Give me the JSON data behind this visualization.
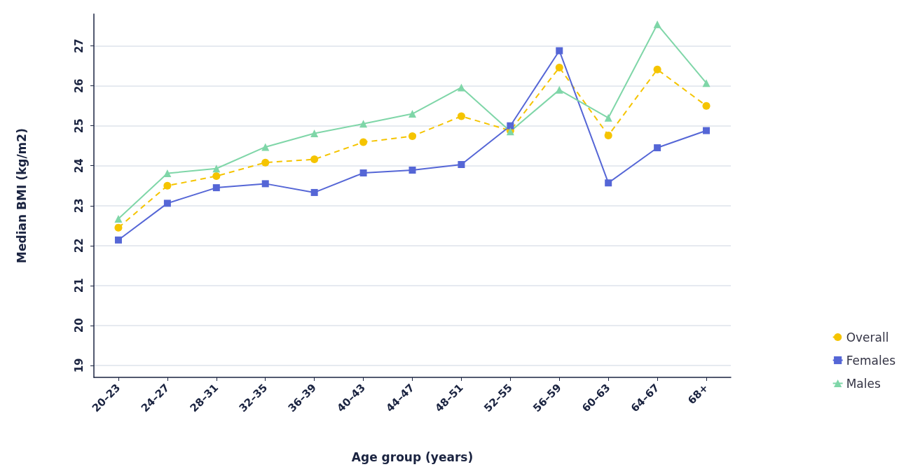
{
  "chart_data": {
    "type": "line",
    "xlabel": "Age group (years)",
    "ylabel": "Median BMI (kg/m2)",
    "categories": [
      "20–23",
      "24–27",
      "28–31",
      "32–35",
      "36–39",
      "40–43",
      "44–47",
      "48–51",
      "52–55",
      "56–59",
      "60–63",
      "64–67",
      "68+"
    ],
    "series": [
      {
        "name": "Overall",
        "color": "#f5c400",
        "marker": "circle",
        "line_style": "dashed",
        "values": [
          22.45,
          23.5,
          23.74,
          24.08,
          24.16,
          24.59,
          24.74,
          25.24,
          24.88,
          26.46,
          24.76,
          26.41,
          25.5
        ]
      },
      {
        "name": "Females",
        "color": "#5566d6",
        "marker": "square",
        "line_style": "solid",
        "values": [
          22.14,
          23.06,
          23.45,
          23.55,
          23.33,
          23.82,
          23.89,
          24.03,
          25.0,
          26.88,
          23.57,
          24.45,
          24.88
        ]
      },
      {
        "name": "Males",
        "color": "#7fd6a8",
        "marker": "triangle",
        "line_style": "solid",
        "values": [
          22.67,
          23.81,
          23.93,
          24.47,
          24.81,
          25.05,
          25.3,
          25.96,
          24.86,
          25.9,
          25.2,
          27.54,
          26.07
        ]
      }
    ],
    "ylim": [
      18.7,
      27.8
    ],
    "yticks": [
      19,
      20,
      21,
      22,
      23,
      24,
      25,
      26,
      27
    ],
    "grid": "y",
    "legend": "right"
  }
}
